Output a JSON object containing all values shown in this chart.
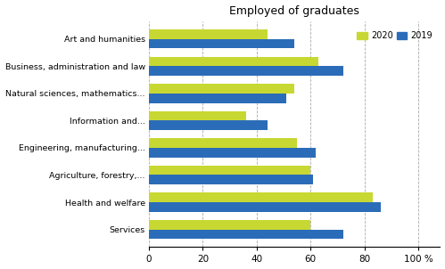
{
  "title": "Employed of graduates",
  "categories": [
    "Art and humanities",
    "Business, administration and law",
    "Natural sciences, mathematics...",
    "Information and...",
    "Engineering, manufacturing...",
    "Agriculture, forestry,...",
    "Health and welfare",
    "Services"
  ],
  "values_2020": [
    44,
    63,
    54,
    36,
    55,
    60,
    83,
    60
  ],
  "values_2019": [
    54,
    72,
    51,
    44,
    62,
    61,
    86,
    72
  ],
  "color_2020": "#c8d832",
  "color_2019": "#2b6cb8",
  "xticks": [
    0,
    20,
    40,
    60,
    80,
    100
  ],
  "bar_height": 0.35,
  "background_color": "#ffffff",
  "grid_color": "#aaaaaa"
}
